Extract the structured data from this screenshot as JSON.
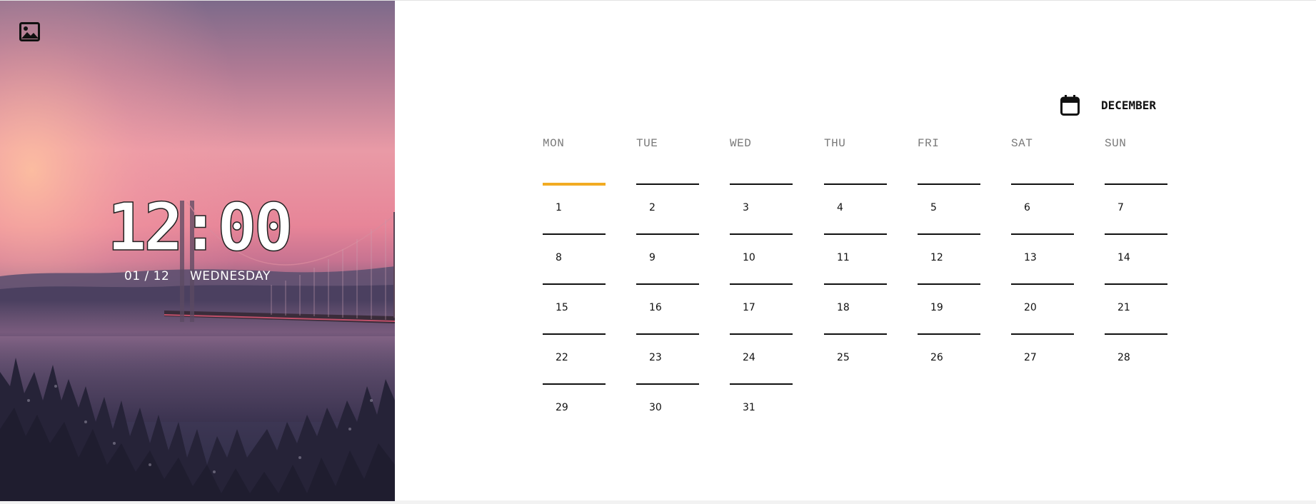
{
  "colors": {
    "accent_today": "#f2ab22",
    "weekday_text": "#7a7a7a",
    "day_text": "#111111"
  },
  "photo": {
    "toggle_icon": "image-icon"
  },
  "clock": {
    "time": "12:00",
    "date": "01 / 12",
    "weekday": "WEDNESDAY"
  },
  "calendar": {
    "icon": "calendar-icon",
    "month": "DECEMBER",
    "weekdays": [
      "MON",
      "TUE",
      "WED",
      "THU",
      "FRI",
      "SAT",
      "SUN"
    ],
    "today": "1",
    "days": [
      "1",
      "2",
      "3",
      "4",
      "5",
      "6",
      "7",
      "8",
      "9",
      "10",
      "11",
      "12",
      "13",
      "14",
      "15",
      "16",
      "17",
      "18",
      "19",
      "20",
      "21",
      "22",
      "23",
      "24",
      "25",
      "26",
      "27",
      "28",
      "29",
      "30",
      "31"
    ]
  }
}
